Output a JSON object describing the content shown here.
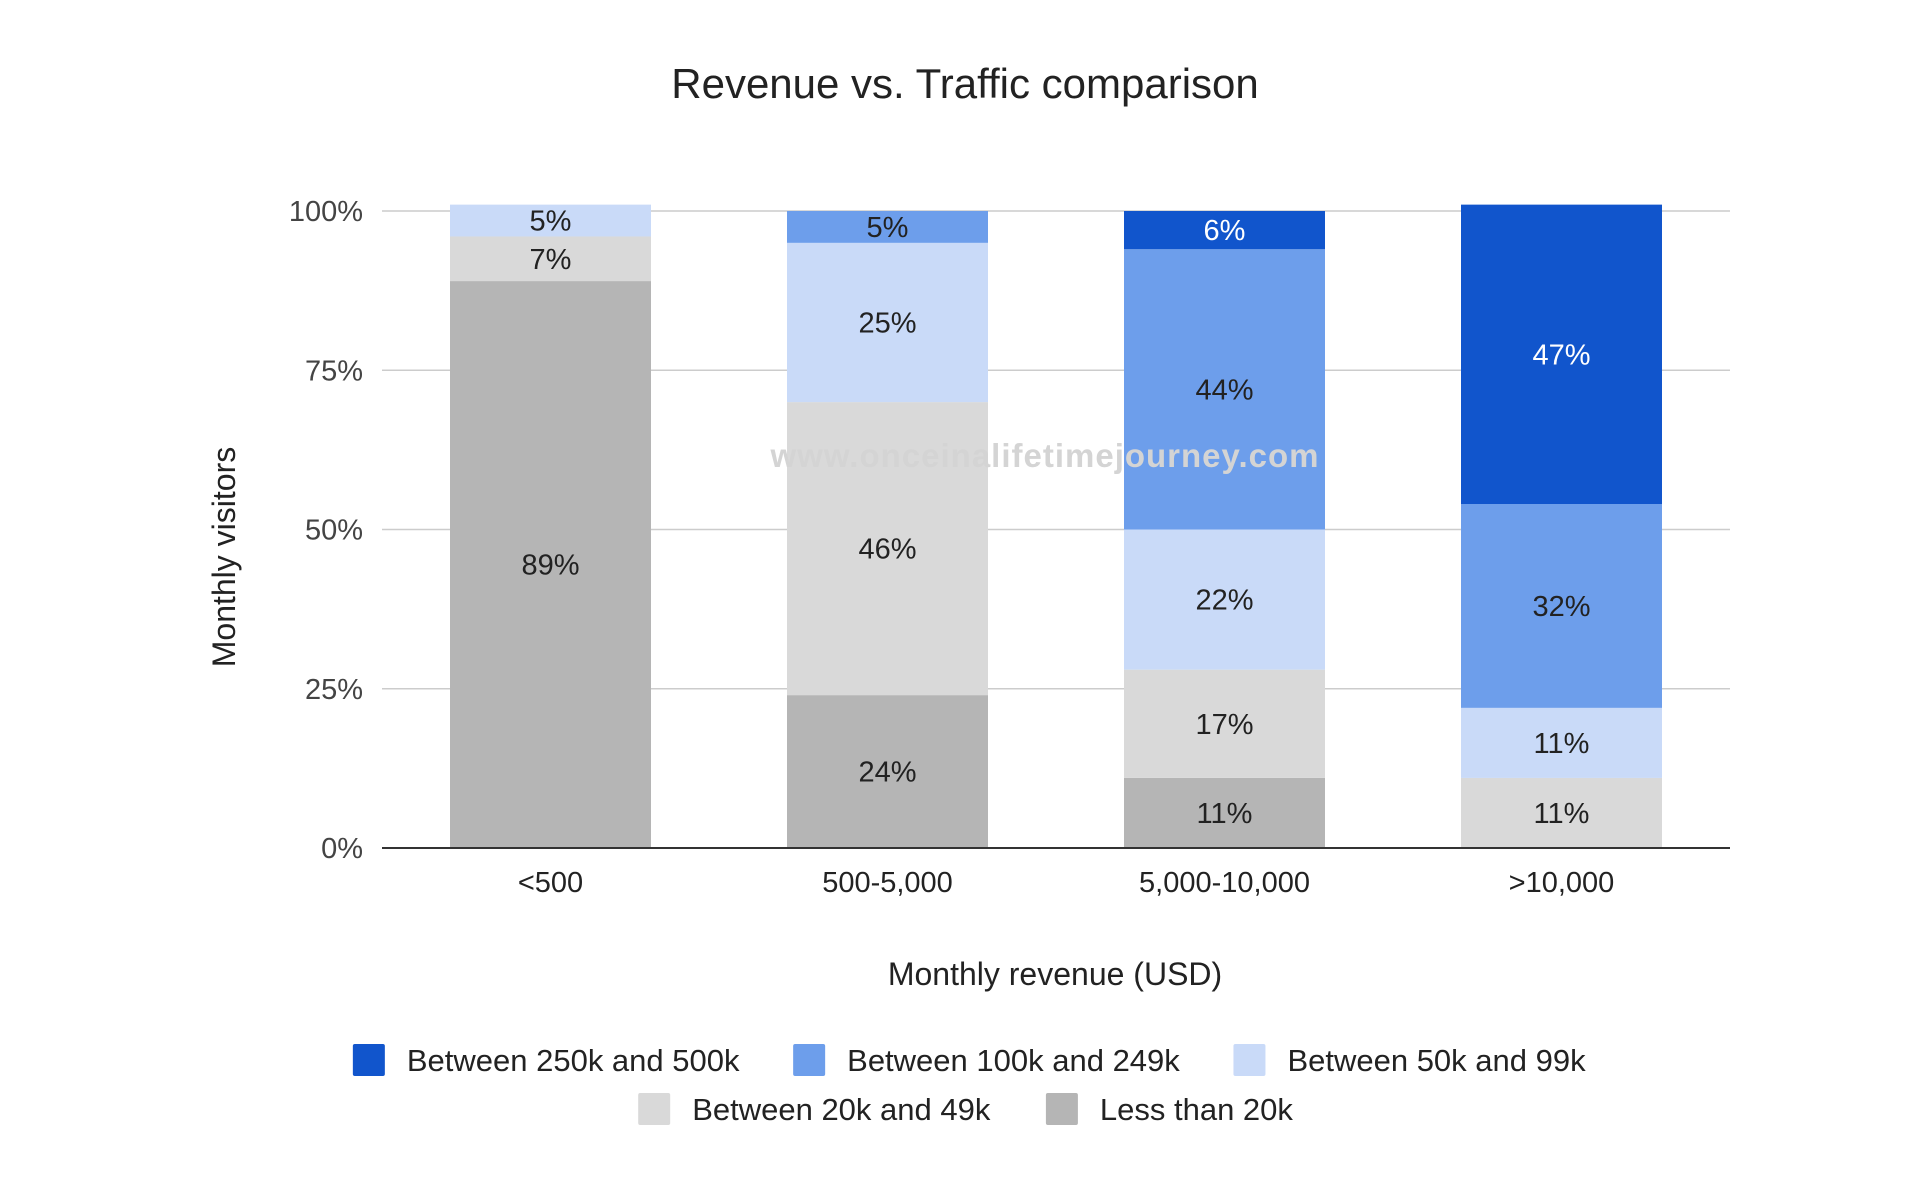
{
  "watermark": "www.onceinalifetimejourney.com",
  "chart_data": {
    "type": "bar",
    "stacked": true,
    "percent_stacked": true,
    "title": "Revenue vs. Traffic comparison",
    "xlabel": "Monthly revenue (USD)",
    "ylabel": "Monthly visitors",
    "categories": [
      "<500",
      "500-5,000",
      "5,000-10,000",
      ">10,000"
    ],
    "ylim": [
      0,
      100
    ],
    "yticks": [
      "0%",
      "25%",
      "50%",
      "75%",
      "100%"
    ],
    "grid": true,
    "legend_position": "bottom",
    "series": [
      {
        "name": "Less than 20k",
        "color": "#b5b5b5",
        "label_color": "#222222",
        "values": [
          89,
          24,
          11,
          0
        ]
      },
      {
        "name": "Between 20k and 49k",
        "color": "#d9d9d9",
        "label_color": "#222222",
        "values": [
          7,
          46,
          17,
          11
        ]
      },
      {
        "name": "Between 50k and 99k",
        "color": "#c9daf8",
        "label_color": "#222222",
        "values": [
          5,
          25,
          22,
          11
        ]
      },
      {
        "name": "Between 100k and 249k",
        "color": "#6d9eeb",
        "label_color": "#222222",
        "values": [
          0,
          5,
          44,
          32
        ]
      },
      {
        "name": "Between 250k and 500k",
        "color": "#1155cc",
        "label_color": "#ffffff",
        "values": [
          0,
          0,
          6,
          47
        ]
      }
    ],
    "legend_order": [
      "Between 250k and 500k",
      "Between 100k and 249k",
      "Between 50k and 99k",
      "Between 20k and 49k",
      "Less than 20k"
    ]
  }
}
